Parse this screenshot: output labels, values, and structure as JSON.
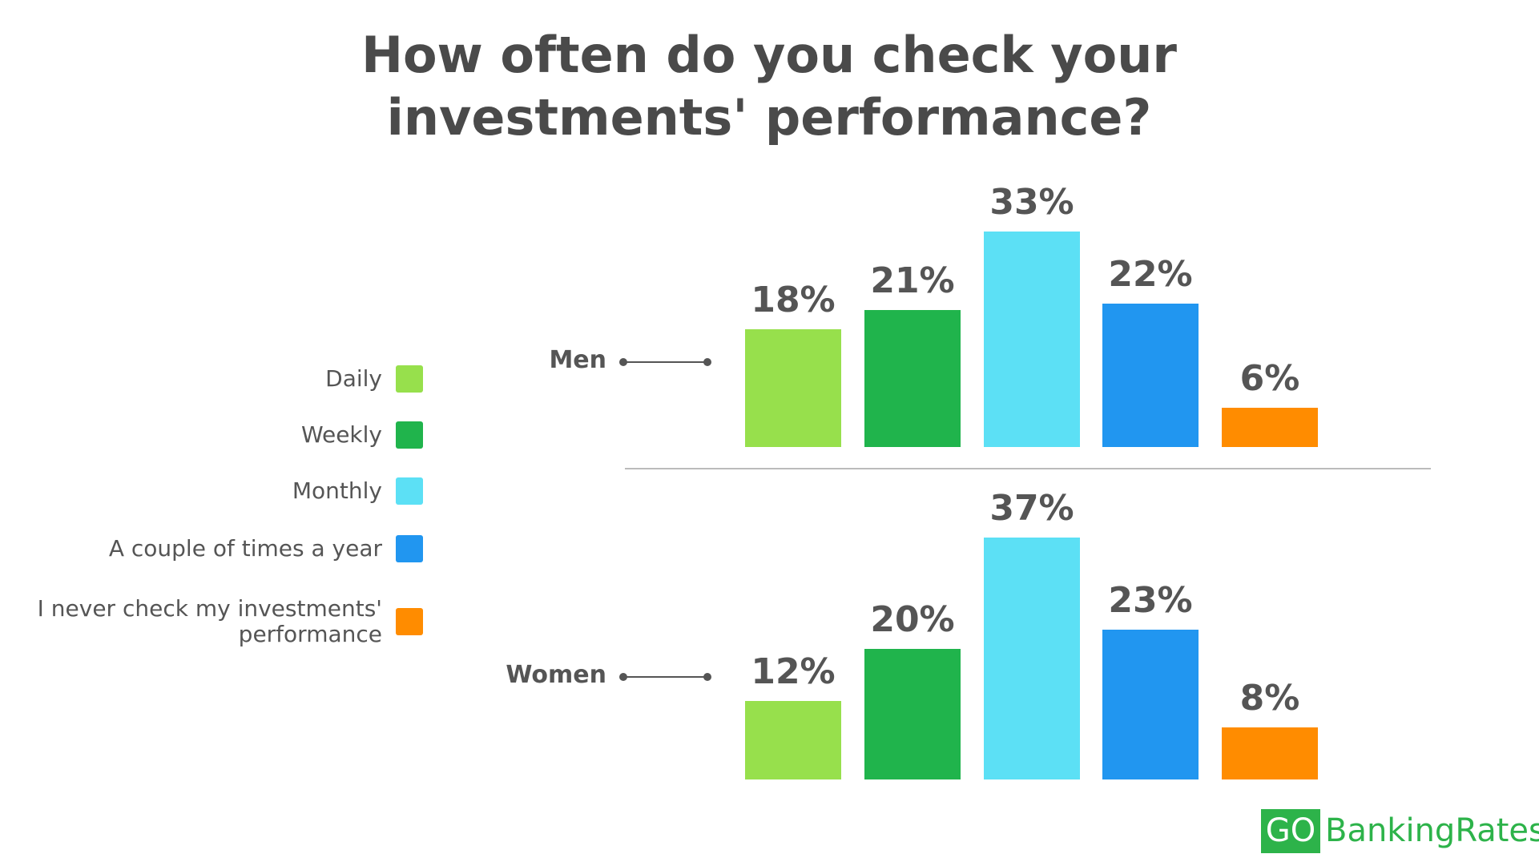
{
  "chart_data": {
    "type": "bar",
    "title": "How often do you check your investments' performance?",
    "categories": [
      "Men",
      "Women"
    ],
    "series": [
      {
        "name": "Daily",
        "color": "#97e04c",
        "values": [
          18,
          12
        ],
        "value_labels": [
          "18%",
          "12%"
        ]
      },
      {
        "name": "Weekly",
        "color": "#20b44c",
        "values": [
          21,
          20
        ],
        "value_labels": [
          "21%",
          "20%"
        ]
      },
      {
        "name": "Monthly",
        "color": "#5ce0f5",
        "values": [
          33,
          37
        ],
        "value_labels": [
          "33%",
          "37%"
        ]
      },
      {
        "name": "A couple of times a year",
        "color": "#2196f0",
        "values": [
          22,
          23
        ],
        "value_labels": [
          "22%",
          "23%"
        ]
      },
      {
        "name": "I never check my investments' performance",
        "color": "#ff8c00",
        "values": [
          6,
          8
        ],
        "value_labels": [
          "6%",
          "8%"
        ]
      }
    ]
  },
  "logo": {
    "mark": "GO",
    "text": "BankingRates"
  }
}
